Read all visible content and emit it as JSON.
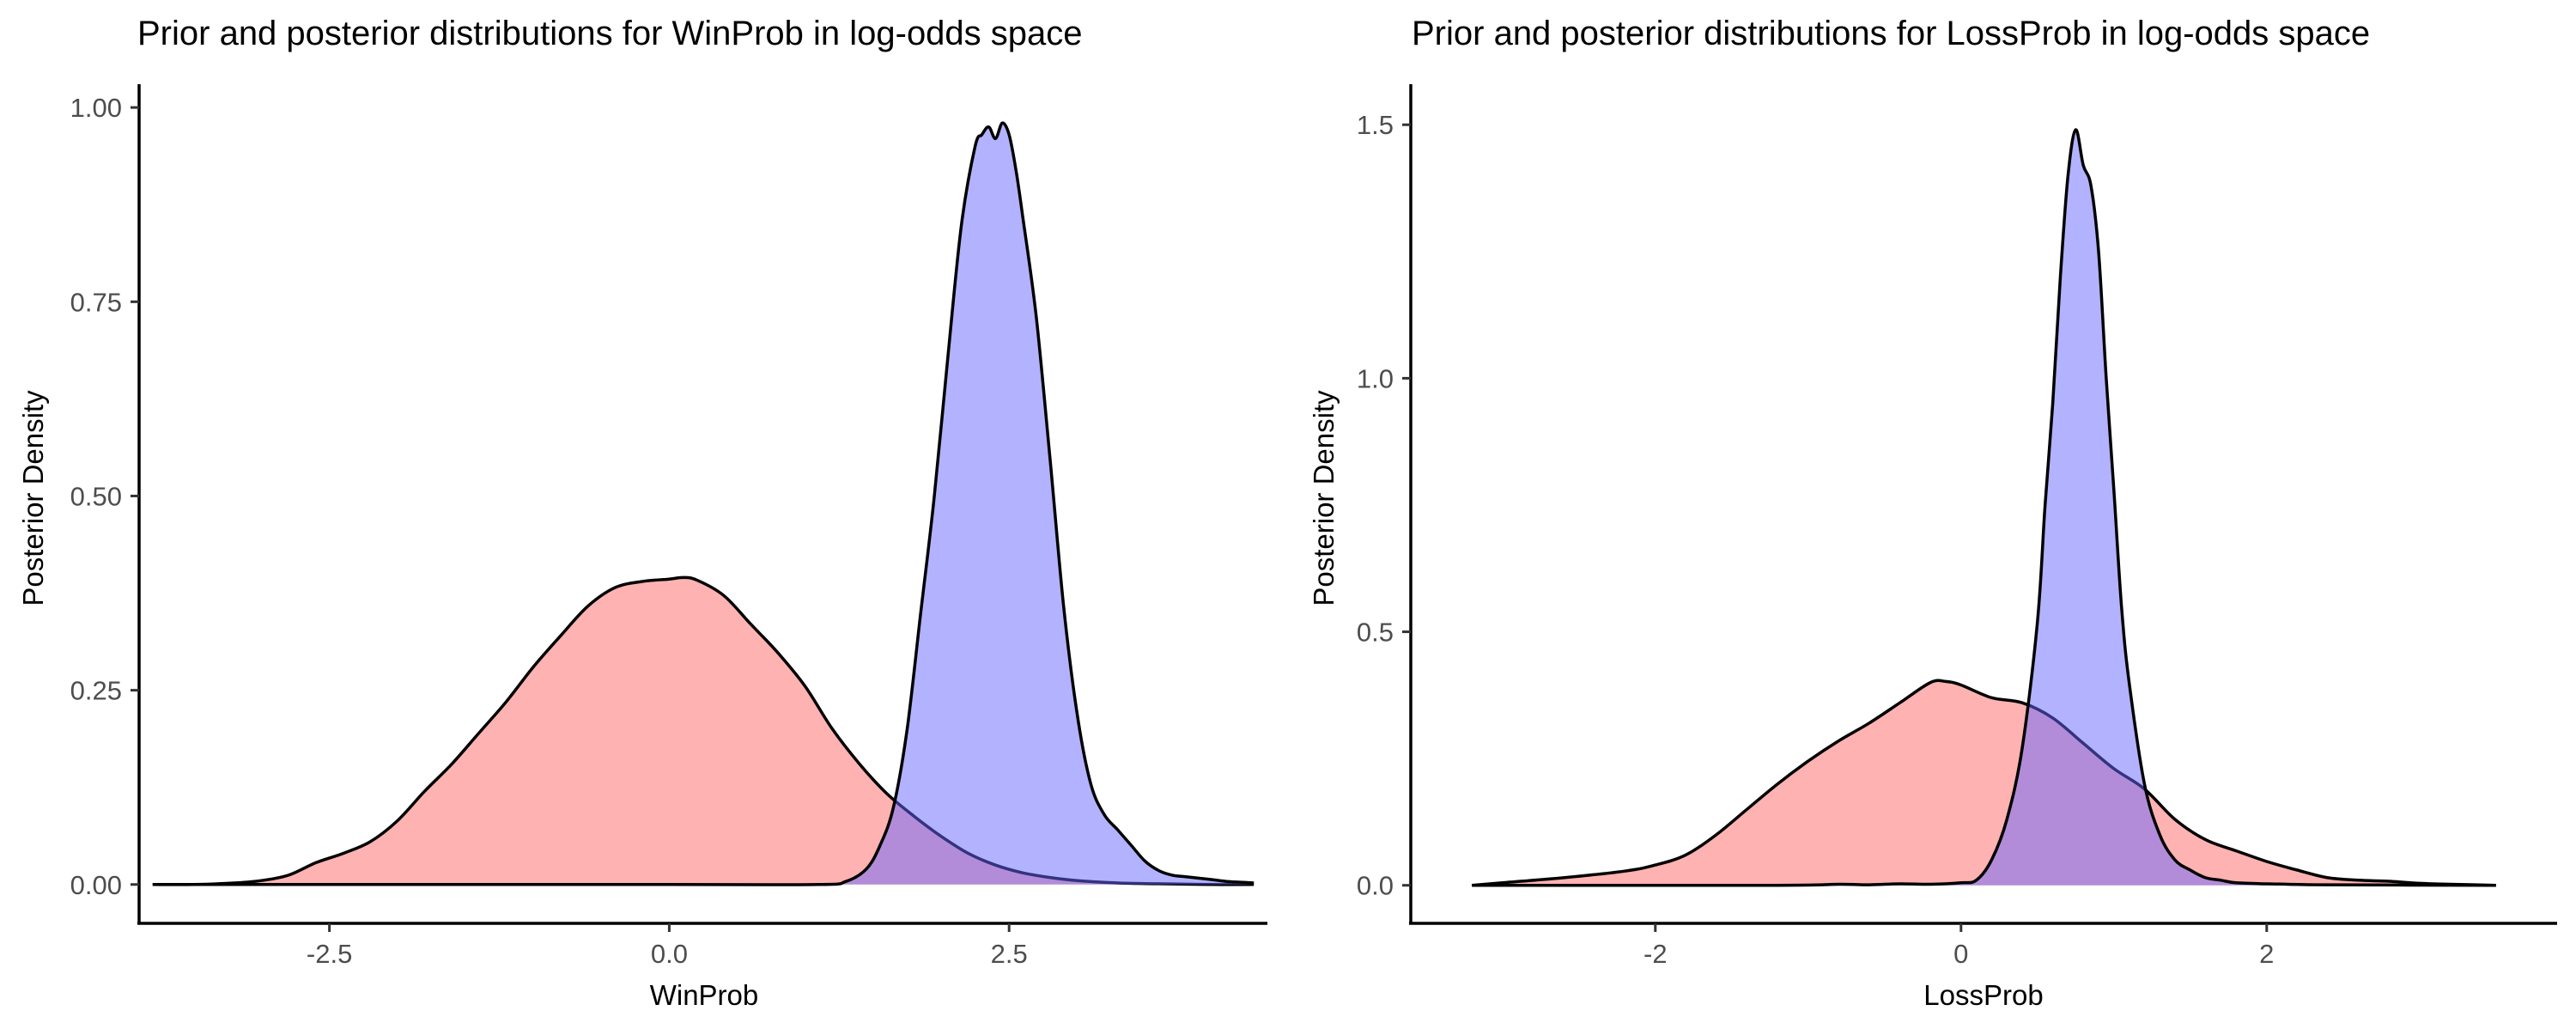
{
  "chart_data": [
    {
      "type": "area",
      "title": "Prior and posterior distributions for WinProb in log-odds space",
      "xlabel": "WinProb",
      "ylabel": "Posterior Density",
      "xlim": [
        -3.9,
        4.4
      ],
      "ylim": [
        -0.05,
        1.03
      ],
      "xticks": [
        -2.5,
        0.0,
        2.5
      ],
      "xtick_labels": [
        "-2.5",
        "0.0",
        "2.5"
      ],
      "yticks": [
        0,
        0.25,
        0.5,
        0.75,
        1.0
      ],
      "ytick_labels": [
        "0.00",
        "0.25",
        "0.50",
        "0.75",
        "1.00"
      ],
      "grid": false,
      "legend": "none",
      "series": [
        {
          "role": "prior",
          "color": "#ff6666",
          "opacity": 0.5,
          "x": [
            -3.8,
            -3.5,
            -3.2,
            -3.0,
            -2.8,
            -2.6,
            -2.4,
            -2.2,
            -2.0,
            -1.8,
            -1.6,
            -1.4,
            -1.2,
            -1.0,
            -0.8,
            -0.6,
            -0.4,
            -0.2,
            0.0,
            0.1,
            0.2,
            0.4,
            0.6,
            0.8,
            1.0,
            1.2,
            1.4,
            1.6,
            1.8,
            2.0,
            2.2,
            2.4,
            2.6,
            2.8,
            3.0,
            3.3,
            3.6,
            4.0,
            4.3
          ],
          "y": [
            0.0,
            0.0,
            0.002,
            0.005,
            0.012,
            0.028,
            0.04,
            0.055,
            0.082,
            0.12,
            0.155,
            0.195,
            0.235,
            0.28,
            0.32,
            0.358,
            0.382,
            0.39,
            0.393,
            0.395,
            0.392,
            0.372,
            0.335,
            0.298,
            0.255,
            0.2,
            0.155,
            0.117,
            0.088,
            0.062,
            0.04,
            0.025,
            0.015,
            0.009,
            0.005,
            0.002,
            0.001,
            0.0,
            0.0
          ]
        },
        {
          "role": "posterior",
          "color": "#6666ff",
          "opacity": 0.5,
          "x": [
            -3.8,
            0.0,
            1.1,
            1.3,
            1.45,
            1.55,
            1.65,
            1.75,
            1.85,
            1.95,
            2.05,
            2.15,
            2.25,
            2.3,
            2.35,
            2.4,
            2.45,
            2.5,
            2.55,
            2.6,
            2.7,
            2.8,
            2.9,
            3.0,
            3.1,
            3.2,
            3.3,
            3.4,
            3.5,
            3.6,
            3.7,
            3.8,
            3.9,
            4.0,
            4.1,
            4.2,
            4.3
          ],
          "y": [
            0.0,
            0.0,
            0.0,
            0.004,
            0.02,
            0.05,
            0.1,
            0.2,
            0.35,
            0.5,
            0.68,
            0.85,
            0.95,
            0.965,
            0.975,
            0.96,
            0.98,
            0.965,
            0.92,
            0.86,
            0.73,
            0.55,
            0.36,
            0.22,
            0.13,
            0.09,
            0.07,
            0.05,
            0.03,
            0.018,
            0.012,
            0.01,
            0.008,
            0.006,
            0.004,
            0.003,
            0.002
          ]
        }
      ]
    },
    {
      "type": "area",
      "title": "Prior and posterior distributions for LossProb in log-odds space",
      "xlabel": "LossProb",
      "ylabel": "Posterior Density",
      "xlim": [
        -3.6,
        3.9
      ],
      "ylim": [
        -0.075,
        1.58
      ],
      "xticks": [
        -2,
        0,
        2
      ],
      "xtick_labels": [
        "-2",
        "0",
        "2"
      ],
      "yticks": [
        0,
        0.5,
        1.0,
        1.5
      ],
      "ytick_labels": [
        "0.0",
        "0.5",
        "1.0",
        "1.5"
      ],
      "grid": false,
      "legend": "none",
      "series": [
        {
          "role": "prior",
          "color": "#ff6666",
          "opacity": 0.5,
          "x": [
            -3.2,
            -3.0,
            -2.6,
            -2.2,
            -2.0,
            -1.8,
            -1.6,
            -1.4,
            -1.2,
            -1.0,
            -0.8,
            -0.6,
            -0.4,
            -0.2,
            -0.1,
            0.0,
            0.2,
            0.4,
            0.6,
            0.8,
            1.0,
            1.2,
            1.4,
            1.6,
            1.8,
            2.0,
            2.2,
            2.4,
            2.6,
            2.8,
            3.0,
            3.2,
            3.5
          ],
          "y": [
            0.0,
            0.005,
            0.015,
            0.028,
            0.04,
            0.06,
            0.1,
            0.15,
            0.2,
            0.245,
            0.285,
            0.32,
            0.36,
            0.4,
            0.402,
            0.395,
            0.37,
            0.36,
            0.33,
            0.28,
            0.23,
            0.19,
            0.13,
            0.09,
            0.068,
            0.047,
            0.03,
            0.015,
            0.01,
            0.008,
            0.004,
            0.002,
            0.0
          ]
        },
        {
          "role": "posterior",
          "color": "#6666ff",
          "opacity": 0.5,
          "x": [
            -3.2,
            -1.2,
            -0.8,
            -0.6,
            -0.4,
            -0.2,
            0.0,
            0.1,
            0.2,
            0.3,
            0.4,
            0.5,
            0.55,
            0.6,
            0.65,
            0.7,
            0.75,
            0.8,
            0.85,
            0.9,
            0.95,
            1.0,
            1.05,
            1.1,
            1.2,
            1.3,
            1.4,
            1.5,
            1.6,
            1.7,
            1.8,
            2.0,
            2.4,
            3.5
          ],
          "y": [
            0.0,
            0.0,
            0.002,
            0.001,
            0.003,
            0.002,
            0.005,
            0.01,
            0.05,
            0.13,
            0.27,
            0.52,
            0.75,
            0.95,
            1.2,
            1.4,
            1.49,
            1.42,
            1.38,
            1.25,
            1.0,
            0.78,
            0.55,
            0.4,
            0.2,
            0.1,
            0.05,
            0.03,
            0.015,
            0.01,
            0.005,
            0.003,
            0.001,
            0.0
          ]
        }
      ]
    }
  ]
}
